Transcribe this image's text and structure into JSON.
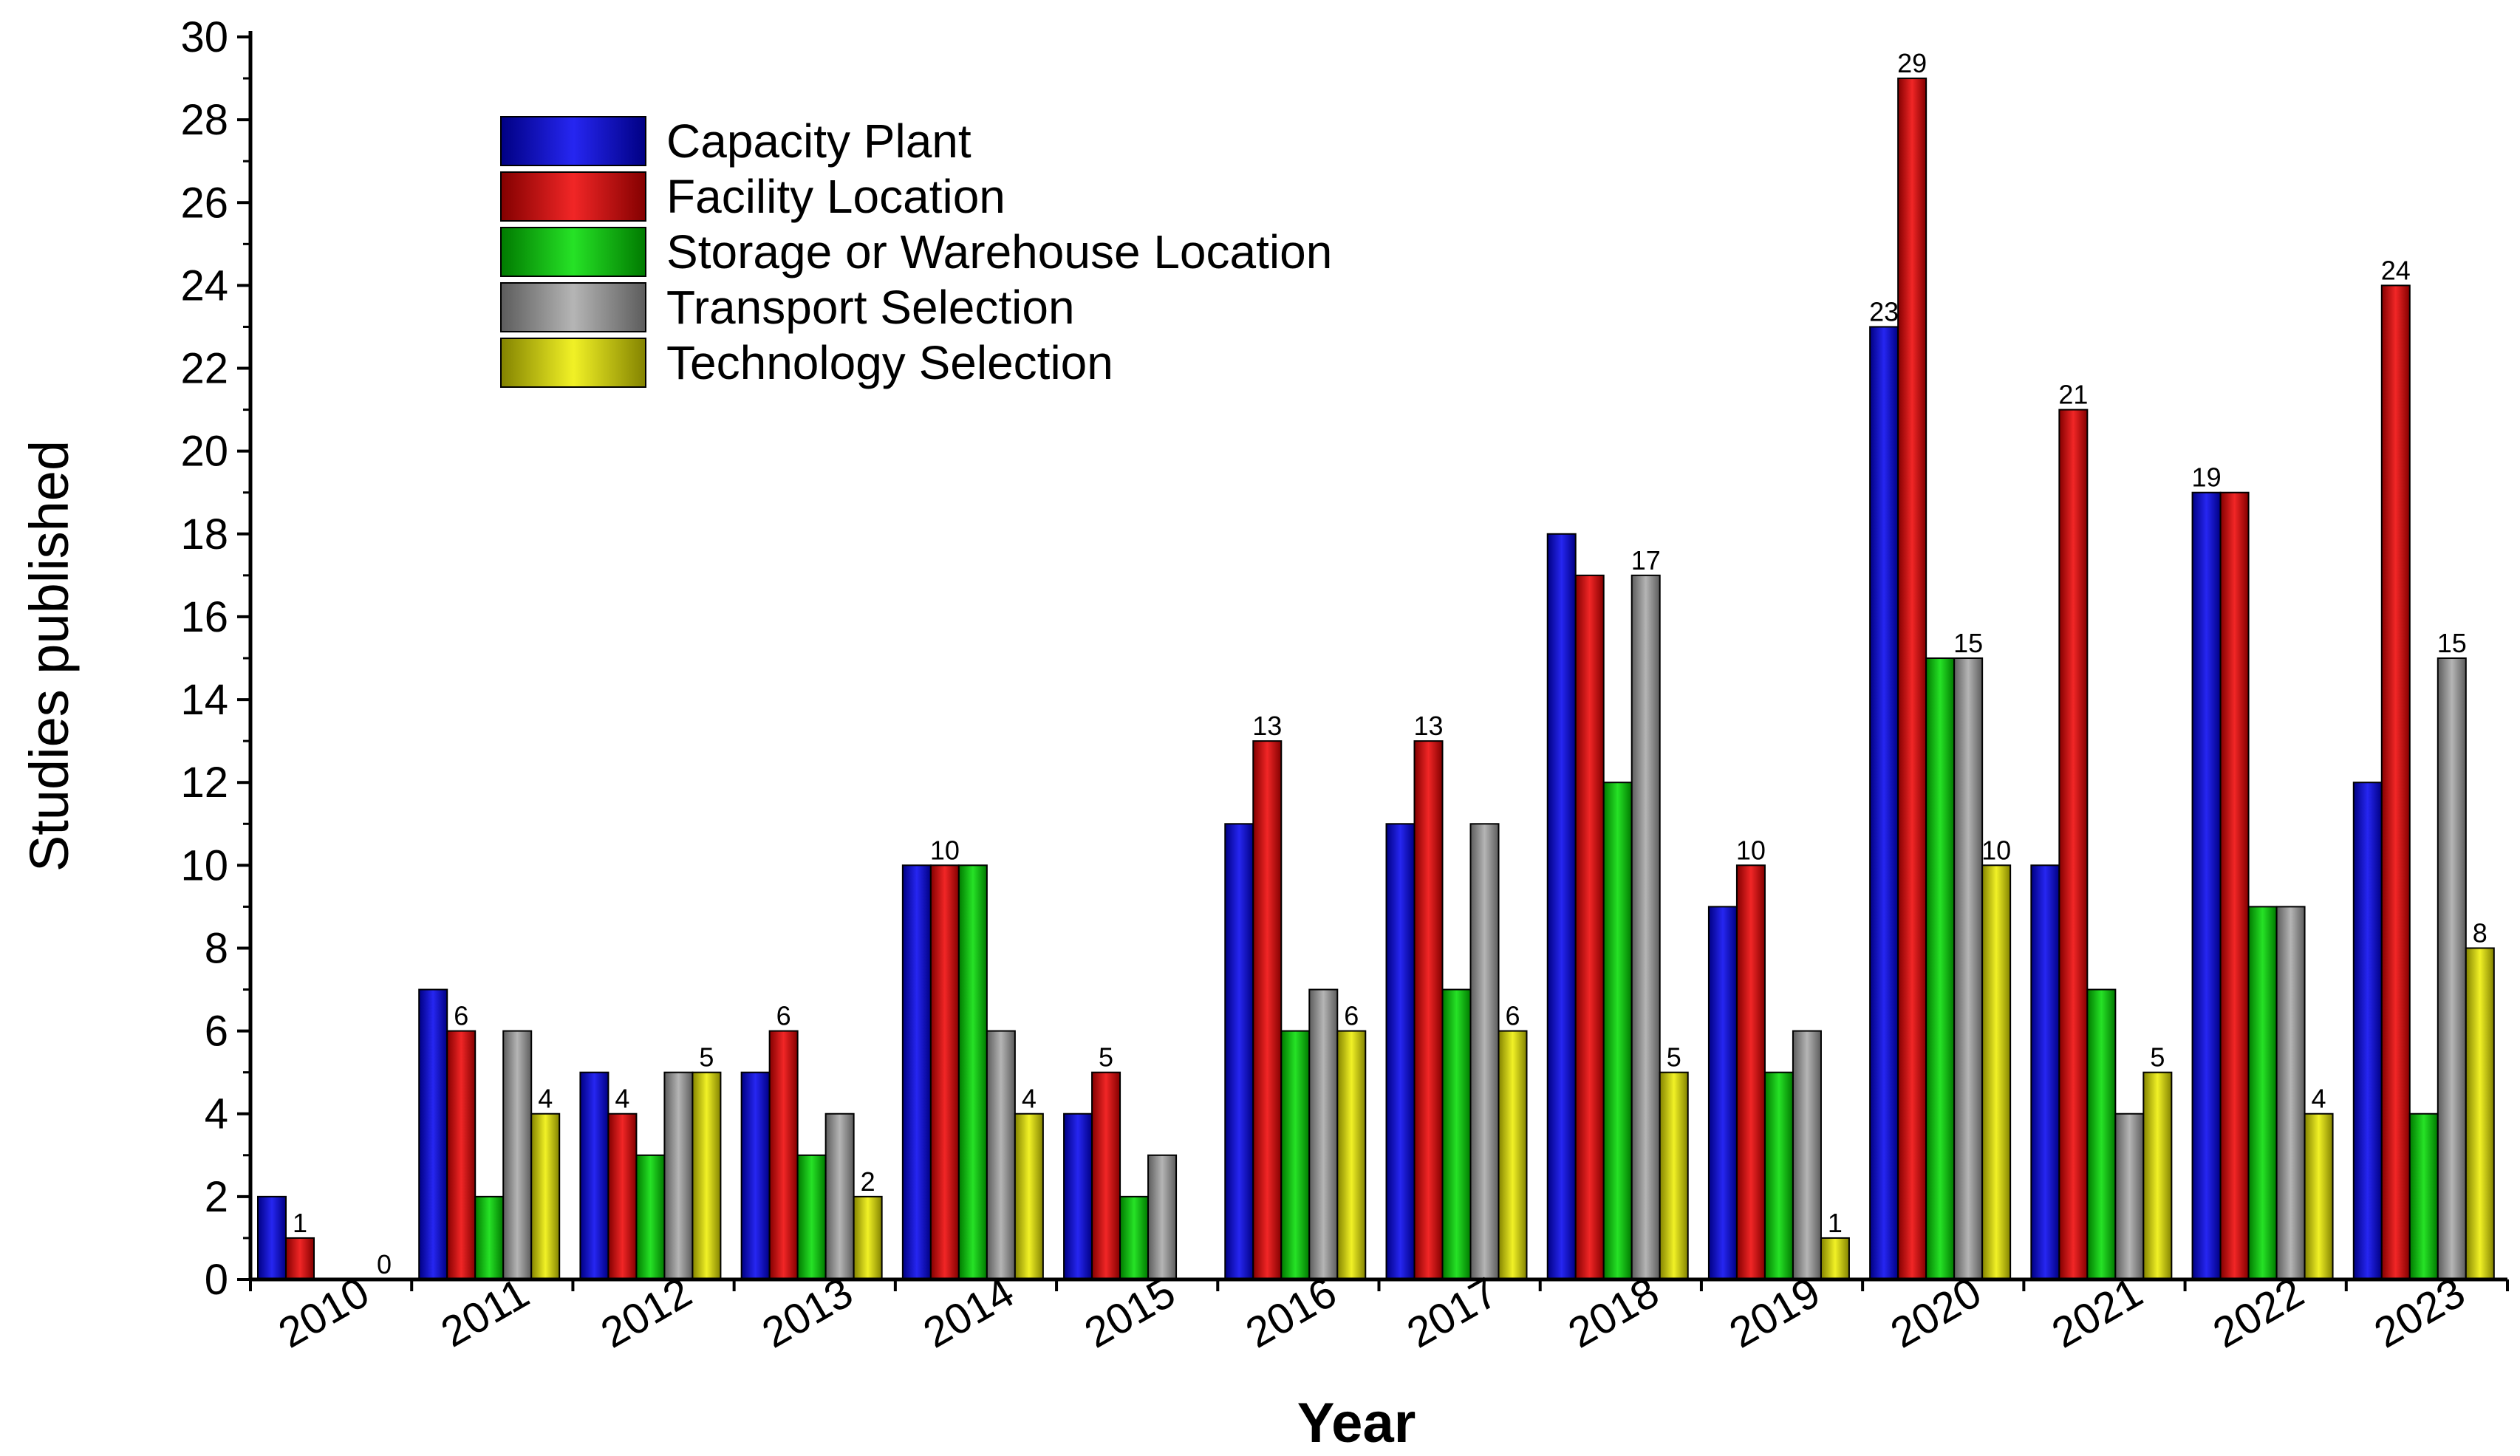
{
  "chart_data": {
    "type": "bar",
    "title": "",
    "xlabel": "Year",
    "ylabel": "Studies published",
    "ylim": [
      0,
      30
    ],
    "yticks": [
      0,
      2,
      4,
      6,
      8,
      10,
      12,
      14,
      16,
      18,
      20,
      22,
      24,
      26,
      28,
      30
    ],
    "categories": [
      "2010",
      "2011",
      "2012",
      "2013",
      "2014",
      "2015",
      "2016",
      "2017",
      "2018",
      "2019",
      "2020",
      "2021",
      "2022",
      "2023"
    ],
    "series": [
      {
        "name": "Capacity Plant",
        "color": "#0000ee",
        "values": [
          2,
          7,
          5,
          5,
          10,
          4,
          11,
          11,
          18,
          9,
          23,
          10,
          19,
          12
        ]
      },
      {
        "name": "Facility Location",
        "color": "#ee0000",
        "values": [
          1,
          6,
          4,
          6,
          10,
          5,
          13,
          13,
          17,
          10,
          29,
          21,
          19,
          24
        ]
      },
      {
        "name": "Storage or Warehouse Location",
        "color": "#00dd00",
        "values": [
          0,
          2,
          3,
          3,
          10,
          2,
          6,
          7,
          12,
          5,
          15,
          7,
          9,
          4
        ]
      },
      {
        "name": "Transport Selection",
        "color": "#a8a8a8",
        "values": [
          0,
          6,
          5,
          4,
          6,
          3,
          7,
          11,
          17,
          6,
          15,
          4,
          9,
          15
        ]
      },
      {
        "name": "Technology Selection",
        "color": "#eeee00",
        "values": [
          0,
          4,
          5,
          2,
          4,
          0,
          6,
          6,
          5,
          1,
          10,
          5,
          4,
          8
        ]
      }
    ],
    "data_labels": [
      {
        "category": "2010",
        "series": "Facility Location",
        "text": "1"
      },
      {
        "category": "2010",
        "series": "Technology Selection",
        "text": "0"
      },
      {
        "category": "2011",
        "series": "Facility Location",
        "text": "6"
      },
      {
        "category": "2011",
        "series": "Technology Selection",
        "text": "4"
      },
      {
        "category": "2012",
        "series": "Facility Location",
        "text": "4"
      },
      {
        "category": "2012",
        "series": "Technology Selection",
        "text": "5"
      },
      {
        "category": "2013",
        "series": "Facility Location",
        "text": "6"
      },
      {
        "category": "2013",
        "series": "Technology Selection",
        "text": "2"
      },
      {
        "category": "2014",
        "series": "Facility Location",
        "text": "10"
      },
      {
        "category": "2014",
        "series": "Technology Selection",
        "text": "4"
      },
      {
        "category": "2015",
        "series": "Facility Location",
        "text": "5"
      },
      {
        "category": "2016",
        "series": "Facility Location",
        "text": "13"
      },
      {
        "category": "2016",
        "series": "Technology Selection",
        "text": "6"
      },
      {
        "category": "2017",
        "series": "Facility Location",
        "text": "13"
      },
      {
        "category": "2017",
        "series": "Technology Selection",
        "text": "6"
      },
      {
        "category": "2018",
        "series": "Transport Selection",
        "text": "17"
      },
      {
        "category": "2018",
        "series": "Technology Selection",
        "text": "5"
      },
      {
        "category": "2019",
        "series": "Facility Location",
        "text": "10"
      },
      {
        "category": "2019",
        "series": "Technology Selection",
        "text": "1"
      },
      {
        "category": "2020",
        "series": "Capacity Plant",
        "text": "23"
      },
      {
        "category": "2020",
        "series": "Facility Location",
        "text": "29"
      },
      {
        "category": "2020",
        "series": "Transport Selection",
        "text": "15"
      },
      {
        "category": "2020",
        "series": "Technology Selection",
        "text": "10"
      },
      {
        "category": "2021",
        "series": "Facility Location",
        "text": "21"
      },
      {
        "category": "2021",
        "series": "Technology Selection",
        "text": "5"
      },
      {
        "category": "2022",
        "series": "Capacity Plant",
        "text": "19"
      },
      {
        "category": "2022",
        "series": "Technology Selection",
        "text": "4"
      },
      {
        "category": "2023",
        "series": "Facility Location",
        "text": "24"
      },
      {
        "category": "2023",
        "series": "Transport Selection",
        "text": "15"
      },
      {
        "category": "2023",
        "series": "Technology Selection",
        "text": "8"
      }
    ],
    "legend_position": "top-left",
    "grid": false
  }
}
